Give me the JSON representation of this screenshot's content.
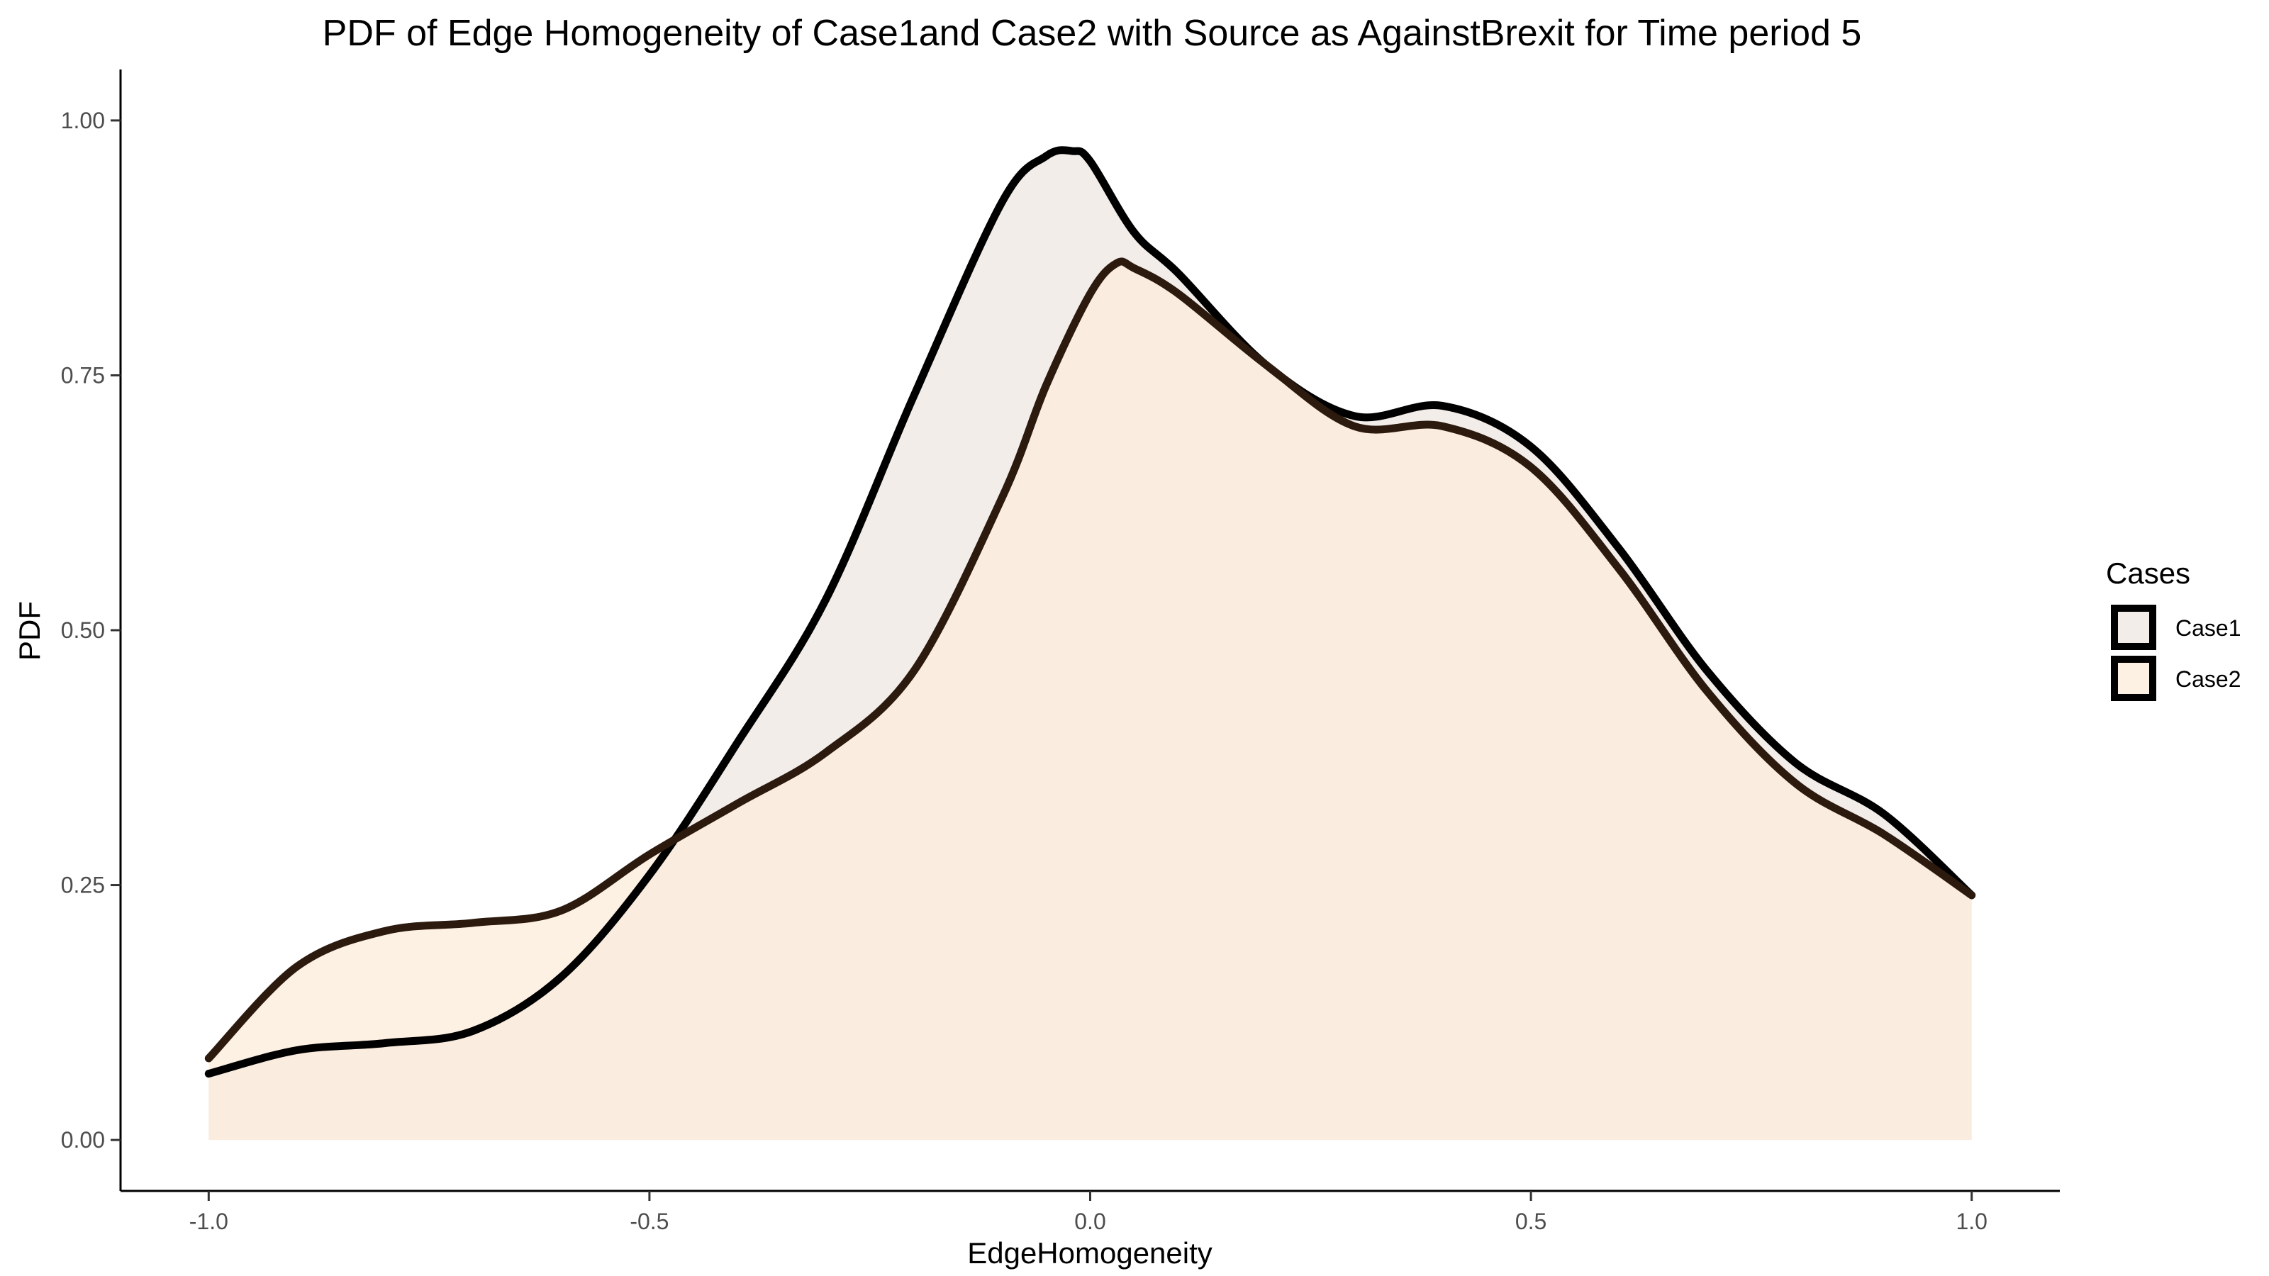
{
  "chart_data": {
    "type": "area",
    "title": "PDF of Edge Homogeneity of Case1and Case2 with Source as AgainstBrexit for Time period 5",
    "xlabel": "EdgeHomogeneity",
    "ylabel": "PDF",
    "xlim": [
      -1.1,
      1.1
    ],
    "ylim": [
      -0.05,
      1.05
    ],
    "x_ticks": [
      -1.0,
      -0.5,
      0.0,
      0.5,
      1.0
    ],
    "x_tick_labels": [
      "-1.0",
      "-0.5",
      "0.0",
      "0.5",
      "1.0"
    ],
    "y_ticks": [
      0.0,
      0.25,
      0.5,
      0.75,
      1.0
    ],
    "y_tick_labels": [
      "0.00",
      "0.25",
      "0.50",
      "0.75",
      "1.00"
    ],
    "grid": false,
    "legend": {
      "title": "Cases",
      "position": "right",
      "entries": [
        "Case1",
        "Case2"
      ]
    },
    "series": [
      {
        "name": "Case1",
        "fill": "#eee6e2",
        "stroke": "#000000",
        "x": [
          -1.0,
          -0.9,
          -0.8,
          -0.7,
          -0.6,
          -0.5,
          -0.4,
          -0.3,
          -0.2,
          -0.1,
          -0.05,
          -0.02,
          0.0,
          0.05,
          0.1,
          0.2,
          0.3,
          0.4,
          0.5,
          0.6,
          0.7,
          0.8,
          0.9,
          1.0
        ],
        "values": [
          0.065,
          0.088,
          0.095,
          0.107,
          0.16,
          0.26,
          0.39,
          0.53,
          0.73,
          0.92,
          0.965,
          0.97,
          0.96,
          0.89,
          0.85,
          0.76,
          0.71,
          0.72,
          0.68,
          0.58,
          0.46,
          0.37,
          0.32,
          0.24
        ]
      },
      {
        "name": "Case2",
        "fill": "#fcebd9",
        "stroke": "#2b1a0d",
        "x": [
          -1.0,
          -0.9,
          -0.8,
          -0.7,
          -0.6,
          -0.5,
          -0.4,
          -0.3,
          -0.2,
          -0.1,
          -0.05,
          0.0,
          0.03,
          0.05,
          0.1,
          0.2,
          0.3,
          0.4,
          0.5,
          0.6,
          0.7,
          0.8,
          0.9,
          1.0
        ],
        "values": [
          0.08,
          0.17,
          0.205,
          0.213,
          0.225,
          0.28,
          0.33,
          0.38,
          0.46,
          0.63,
          0.74,
          0.83,
          0.86,
          0.855,
          0.83,
          0.76,
          0.7,
          0.7,
          0.66,
          0.56,
          0.44,
          0.35,
          0.3,
          0.24
        ]
      }
    ]
  }
}
